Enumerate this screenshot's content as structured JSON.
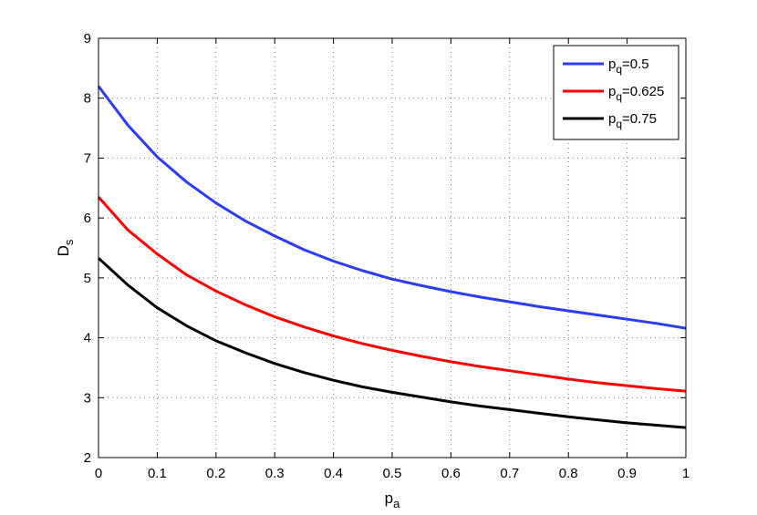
{
  "chart_data": {
    "type": "line",
    "title": "",
    "xlabel": {
      "main": "p",
      "sub": "a"
    },
    "ylabel": {
      "main": "D",
      "sub": "s"
    },
    "xlim": [
      0,
      1
    ],
    "ylim": [
      2,
      9
    ],
    "xticks": [
      "0",
      "0.1",
      "0.2",
      "0.3",
      "0.4",
      "0.5",
      "0.6",
      "0.7",
      "0.8",
      "0.9",
      "1"
    ],
    "yticks": [
      "2",
      "3",
      "4",
      "5",
      "6",
      "7",
      "8",
      "9"
    ],
    "grid": true,
    "legend_position": "top-right",
    "x": [
      0,
      0.05,
      0.1,
      0.15,
      0.2,
      0.25,
      0.3,
      0.35,
      0.4,
      0.45,
      0.5,
      0.55,
      0.6,
      0.65,
      0.7,
      0.75,
      0.8,
      0.85,
      0.9,
      0.95,
      1.0
    ],
    "series": [
      {
        "name": {
          "main": "p",
          "sub": "q",
          "rest": "=0.5"
        },
        "color": "#2a3cf5",
        "values": [
          8.2,
          7.55,
          7.02,
          6.6,
          6.25,
          5.95,
          5.7,
          5.47,
          5.28,
          5.12,
          4.98,
          4.87,
          4.77,
          4.68,
          4.6,
          4.52,
          4.45,
          4.38,
          4.31,
          4.24,
          4.16
        ]
      },
      {
        "name": {
          "main": "p",
          "sub": "q",
          "rest": "=0.625"
        },
        "color": "#ff0000",
        "values": [
          6.35,
          5.8,
          5.4,
          5.05,
          4.78,
          4.55,
          4.35,
          4.18,
          4.03,
          3.9,
          3.79,
          3.69,
          3.6,
          3.52,
          3.45,
          3.38,
          3.31,
          3.25,
          3.2,
          3.15,
          3.11
        ]
      },
      {
        "name": {
          "main": "p",
          "sub": "q",
          "rest": "=0.75"
        },
        "color": "#000000",
        "values": [
          5.33,
          4.88,
          4.5,
          4.2,
          3.95,
          3.75,
          3.57,
          3.42,
          3.29,
          3.18,
          3.09,
          3.01,
          2.93,
          2.86,
          2.8,
          2.74,
          2.68,
          2.63,
          2.58,
          2.54,
          2.5
        ]
      }
    ]
  }
}
